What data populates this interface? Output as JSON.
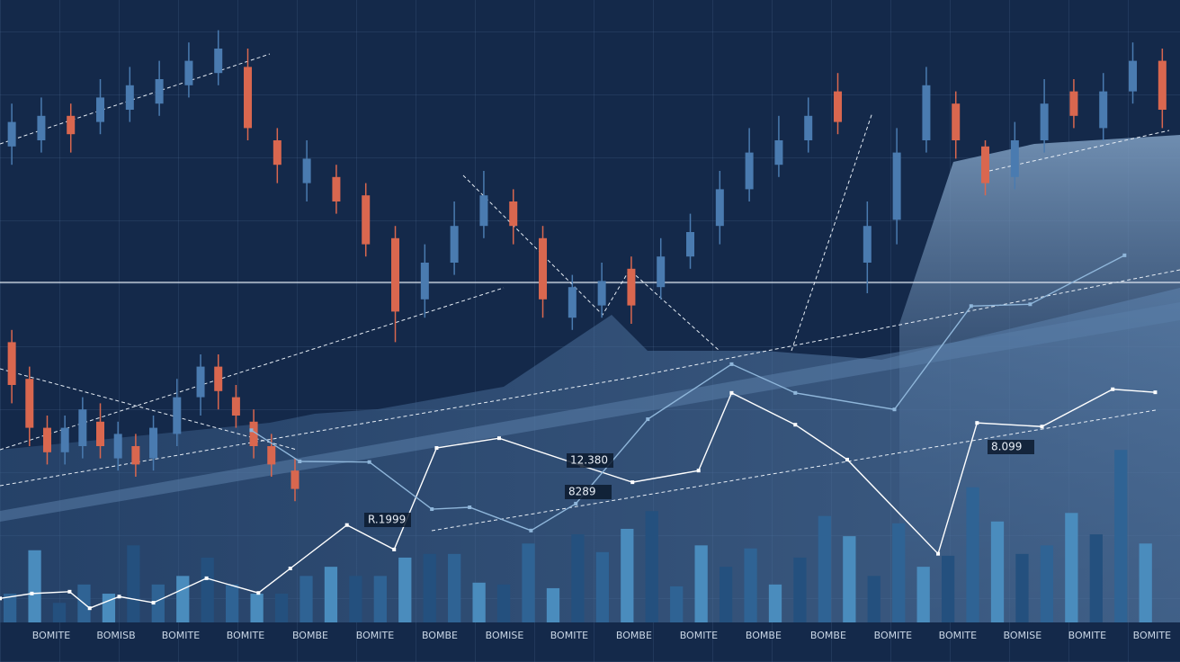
{
  "chart_data": [
    {
      "type": "candlestick",
      "xlim": [
        0,
        100
      ],
      "ylim": [
        0,
        100
      ],
      "up_color": "#4a7bb0",
      "down_color": "#d9674f",
      "x": [
        1,
        3.5,
        6,
        8.5,
        11,
        13.5,
        16,
        18.5,
        21,
        23.5,
        26,
        28.5,
        31,
        33.5,
        36,
        38.5,
        41,
        43.5,
        46,
        48.5,
        51,
        53.5,
        56,
        58.5,
        61,
        63.5,
        66,
        68.5,
        71,
        73.5,
        76,
        78.5,
        81,
        83.5,
        86,
        88.5,
        91,
        93.5,
        96,
        98.5,
        1,
        2.5,
        4,
        5.5,
        7,
        8.5,
        10,
        11.5,
        13,
        15,
        17,
        18.5,
        20,
        21.5,
        23,
        25
      ],
      "open": [
        79,
        80,
        84,
        83,
        85,
        86,
        89,
        91,
        92,
        80,
        73,
        74,
        71,
        64,
        54,
        60,
        66,
        70,
        64,
        51,
        53,
        59,
        56,
        61,
        66,
        72,
        76,
        80,
        88,
        60,
        67,
        80,
        86,
        79,
        74,
        80,
        88,
        82,
        88,
        93,
        47,
        41,
        33,
        29,
        30,
        34,
        28,
        30,
        28,
        32,
        38,
        43,
        38,
        34,
        30,
        26
      ],
      "close": [
        83,
        84,
        81,
        87,
        89,
        90,
        93,
        95,
        82,
        76,
        77,
        70,
        63,
        52,
        60,
        66,
        71,
        66,
        54,
        56,
        57,
        53,
        61,
        65,
        72,
        78,
        80,
        84,
        83,
        66,
        78,
        89,
        80,
        73,
        80,
        86,
        84,
        88,
        93,
        85,
        40,
        33,
        29,
        33,
        36,
        30,
        32,
        27,
        33,
        38,
        43,
        39,
        35,
        30,
        27,
        23
      ],
      "high": [
        86,
        87,
        86,
        90,
        92,
        93,
        96,
        98,
        95,
        82,
        80,
        76,
        73,
        66,
        63,
        70,
        75,
        72,
        66,
        58,
        60,
        61,
        64,
        68,
        75,
        82,
        84,
        87,
        91,
        70,
        82,
        92,
        88,
        80,
        83,
        90,
        90,
        91,
        96,
        95,
        49,
        43,
        35,
        35,
        38,
        37,
        34,
        32,
        35,
        41,
        45,
        45,
        40,
        36,
        32,
        28
      ],
      "low": [
        76,
        78,
        78,
        81,
        83,
        84,
        87,
        89,
        80,
        73,
        70,
        68,
        61,
        47,
        51,
        58,
        64,
        63,
        51,
        49,
        51,
        50,
        54,
        59,
        63,
        70,
        74,
        78,
        81,
        55,
        63,
        78,
        77,
        71,
        72,
        78,
        82,
        80,
        86,
        82,
        37,
        30,
        27,
        27,
        28,
        28,
        26,
        25,
        26,
        30,
        35,
        36,
        33,
        28,
        25,
        21
      ]
    },
    {
      "type": "line",
      "xlim": [
        0,
        100
      ],
      "ylim": [
        0,
        100
      ],
      "series": [
        {
          "color": "#ffffff",
          "x": [
            0,
            2.7,
            5.9,
            7.6,
            10.1,
            13,
            17.5,
            21.9,
            24.6,
            29.4,
            33.4,
            37,
            42.3,
            49.3,
            53.6,
            59.2,
            62,
            67.4,
            71.8,
            79.5,
            82.8,
            88.3,
            94.3,
            97.9
          ],
          "values": [
            5.1,
            5.9,
            6.2,
            3.5,
            5.4,
            4.4,
            8.4,
            6,
            10,
            17.1,
            13.1,
            29.7,
            31.3,
            26.8,
            24.1,
            26,
            38.7,
            33.5,
            27.8,
            12.4,
            33.8,
            33.2,
            39.3,
            38.8
          ]
        },
        {
          "color": "#8fb6da",
          "x": [
            21.3,
            25.4,
            31.3,
            36.6,
            39.8,
            45,
            48.8,
            54.9,
            62,
            67.4,
            75.8,
            82.3,
            87.3,
            95.3
          ],
          "values": [
            32.6,
            27.5,
            27.4,
            19.7,
            20,
            16.2,
            20.6,
            34.4,
            43.4,
            38.7,
            36,
            52.9,
            53.2,
            61.2
          ]
        }
      ]
    },
    {
      "type": "bar",
      "ylim": [
        0,
        30
      ],
      "colors": [
        "#2f6394",
        "#4a8cbd",
        "#24507e"
      ],
      "values": [
        4.7,
        11.8,
        3.2,
        6.2,
        4.7,
        12.6,
        6.2,
        7.6,
        10.6,
        6.2,
        4.7,
        4.7,
        7.6,
        9.1,
        7.6,
        7.6,
        10.6,
        11.2,
        11.2,
        6.5,
        6.2,
        12.9,
        5.6,
        14.4,
        11.5,
        15.3,
        18.2,
        5.9,
        12.6,
        9.1,
        12.1,
        6.2,
        10.6,
        17.4,
        14.1,
        7.6,
        16.2,
        9.1,
        10.9,
        22.1,
        16.5,
        11.2,
        12.6,
        17.9,
        14.4,
        28.2,
        12.9
      ]
    },
    {
      "type": "annotations",
      "labels": [
        "12.380",
        "8289",
        "8.099",
        "R.1999"
      ],
      "x_labels": [
        "BOMITE",
        "BOMISB",
        "BOMITE",
        "BOMITE",
        "BOMBE",
        "BOMITE",
        "BOMBE",
        "BOMISE",
        "BOMITE",
        "BOMBE",
        "BOMITE",
        "BOMBE",
        "BOMBE",
        "BOMITE",
        "BOMITE",
        "BOMISE",
        "BOMITE",
        "BOMITE"
      ]
    }
  ]
}
